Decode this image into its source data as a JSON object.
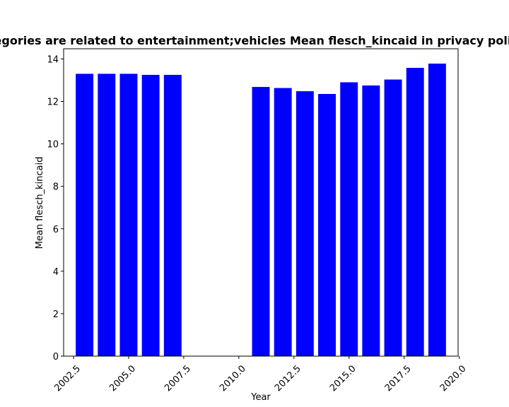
{
  "chart_data": {
    "type": "bar",
    "title": "Categories are related to entertainment;vehicles Mean flesch_kincaid in privacy policies",
    "xlabel": "Year",
    "ylabel": "Mean flesch_kincaid",
    "x": [
      2003,
      2004,
      2005,
      2006,
      2007,
      2011,
      2012,
      2013,
      2014,
      2015,
      2016,
      2017,
      2018,
      2019
    ],
    "values": [
      13.3,
      13.3,
      13.3,
      13.25,
      13.25,
      12.68,
      12.63,
      12.48,
      12.35,
      12.9,
      12.75,
      13.03,
      13.58,
      13.78
    ],
    "xlim": [
      2002.05,
      2019.95
    ],
    "ylim": [
      0,
      14.48
    ],
    "xticks": [
      2002.5,
      2005.0,
      2007.5,
      2010.0,
      2012.5,
      2015.0,
      2017.5,
      2020.0
    ],
    "xtick_labels": [
      "2002.5",
      "2005.0",
      "2007.5",
      "2010.0",
      "2012.5",
      "2015.0",
      "2017.5",
      "2020.0"
    ],
    "yticks": [
      0,
      2,
      4,
      6,
      8,
      10,
      12,
      14
    ],
    "ytick_labels": [
      "0",
      "2",
      "4",
      "6",
      "8",
      "10",
      "12",
      "14"
    ],
    "bar_width": 0.8,
    "bar_color": "#0000ff",
    "grid": false,
    "legend": "none"
  }
}
